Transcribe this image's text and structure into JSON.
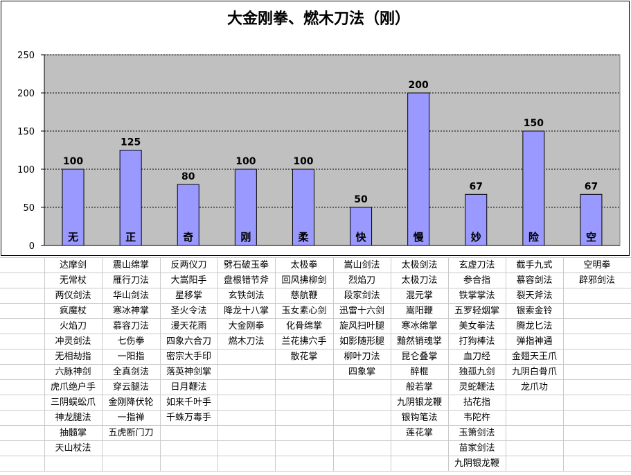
{
  "chart_data": {
    "type": "bar",
    "title": "大金刚拳、燃木刀法（刚）",
    "categories": [
      "无",
      "正",
      "奇",
      "刚",
      "柔",
      "快",
      "慢",
      "妙",
      "险",
      "空"
    ],
    "values": [
      100,
      125,
      80,
      100,
      100,
      50,
      200,
      67,
      150,
      67
    ],
    "ylim": [
      0,
      250
    ],
    "yticks": [
      0,
      50,
      100,
      150,
      200,
      250
    ],
    "grid": true,
    "legend": "none",
    "colors": {
      "bar_fill": "#9999ff",
      "bar_stroke": "#000000",
      "plot_background": "#c0c0c0",
      "gridline": "#000000"
    }
  },
  "table": {
    "columns": [
      [
        "达摩剑",
        "无常杖",
        "两仪剑法",
        "疯魔杖",
        "火焰刀",
        "冲灵剑法",
        "无相劫指",
        "六脉神剑",
        "虎爪绝户手",
        "三阴蜈蚣爪",
        "神龙腿法",
        "抽髓掌",
        "天山杖法"
      ],
      [
        "震山绵掌",
        "雁行刀法",
        "华山剑法",
        "寒冰神掌",
        "慕容刀法",
        "七伤拳",
        "一阳指",
        "全真剑法",
        "穿云腿法",
        "金刚降伏轮",
        "一指禅",
        "五虎断门刀"
      ],
      [
        "反两仪刀",
        "大嵩阳手",
        "星移掌",
        "圣火令法",
        "漫天花雨",
        "四象六合刀",
        "密宗大手印",
        "落英神剑掌",
        "日月鞭法",
        "如来千叶手",
        "千蛛万毒手"
      ],
      [
        "劈石破玉拳",
        "盘根错节斧",
        "玄铁剑法",
        "降龙十八掌",
        "大金刚拳",
        "燃木刀法"
      ],
      [
        "太极拳",
        "回风拂柳剑",
        "慈航鞭",
        "玉女素心剑",
        "化骨绵掌",
        "兰花拂穴手",
        "散花掌"
      ],
      [
        "嵩山剑法",
        "烈焰刀",
        "段家剑法",
        "迅雷十六剑",
        "旋风扫叶腿",
        "如影随形腿",
        "柳叶刀法",
        "四象掌"
      ],
      [
        "太极剑法",
        "太极刀法",
        "混元掌",
        "嵩阳鞭",
        "寒冰绵掌",
        "黯然销魂掌",
        "昆仑叠掌",
        "醉棍",
        "般若掌",
        "九阴银龙鞭",
        "银钩笔法",
        "莲花掌"
      ],
      [
        "玄虚刀法",
        "参合指",
        "铁掌掌法",
        "五罗轻烟掌",
        "美女拳法",
        "打狗棒法",
        "血刀经",
        "独孤九剑",
        "灵蛇鞭法",
        "拈花指",
        "韦陀杵",
        "玉箫剑法",
        "苗家剑法",
        "九阴银龙鞭"
      ],
      [
        "截手九式",
        "慕容剑法",
        "裂天斧法",
        "银索金铃",
        "腾龙匕法",
        "弹指神通",
        "金翅天王爪",
        "九阴白骨爪",
        "龙爪功"
      ],
      [
        "空明拳",
        "辟邪剑法"
      ]
    ]
  }
}
